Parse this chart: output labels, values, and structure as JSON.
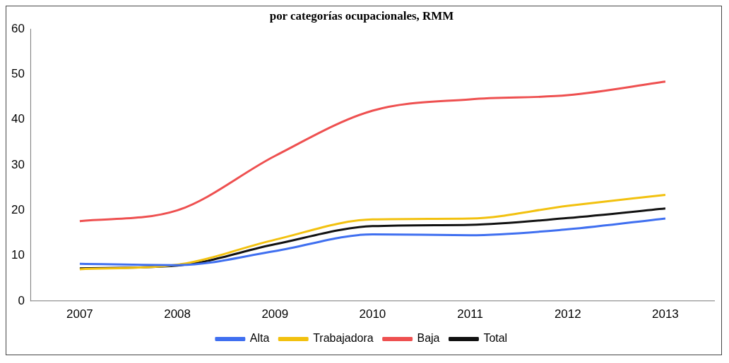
{
  "chart_data": {
    "type": "line",
    "title": "por categorías ocupacionales, RMM",
    "categories": [
      "2007",
      "2008",
      "2009",
      "2010",
      "2011",
      "2012",
      "2013"
    ],
    "series": [
      {
        "name": "Alta",
        "color": "#3f6ff0",
        "values": [
          8.2,
          7.9,
          11,
          14.7,
          14.5,
          15.8,
          18.2
        ]
      },
      {
        "name": "Trabajadora",
        "color": "#f2c10f",
        "values": [
          7,
          8,
          13.5,
          18,
          18.2,
          21,
          23.4
        ]
      },
      {
        "name": "Baja",
        "color": "#ee5050",
        "values": [
          17.6,
          20,
          32,
          42,
          44.5,
          45.4,
          48.4
        ]
      },
      {
        "name": "Total",
        "color": "#111111",
        "values": [
          7.2,
          7.8,
          12.5,
          16.5,
          16.8,
          18.3,
          20.4
        ]
      }
    ],
    "ylim": [
      0,
      60
    ],
    "yticks": [
      0,
      10,
      20,
      30,
      40,
      50,
      60
    ],
    "grid": false,
    "legend": "bottom",
    "marker": "none",
    "line_style": "solid"
  }
}
